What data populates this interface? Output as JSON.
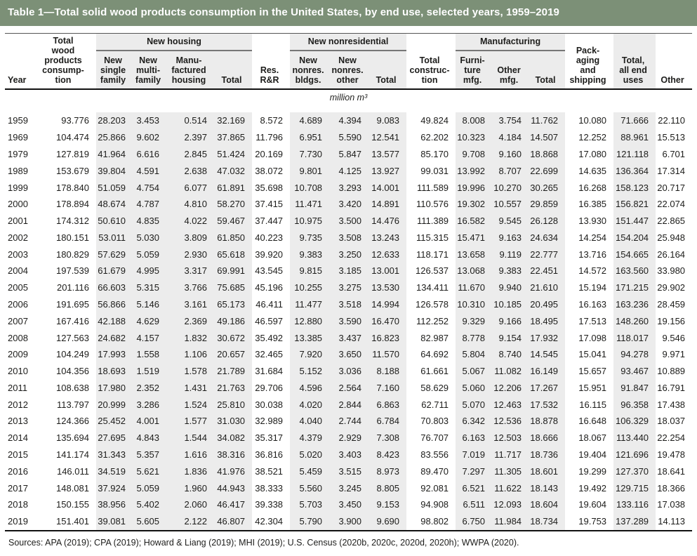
{
  "title": "Table 1—Total solid wood products consumption in the United States, by end use, selected years, 1959–2019",
  "colors": {
    "title_bar_green": "#7c9077",
    "column_shade_gray": "#ececec",
    "text": "#1d1d1b"
  },
  "table": {
    "unit": "million m³",
    "header": {
      "year": "Year",
      "total_wood": "Total\nwood\nproducts\nconsump-\ntion",
      "group_new_housing": "New housing",
      "group_new_nonresidential": "New nonresidential",
      "group_manufacturing": "Manufacturing",
      "new_single": "New\nsingle\nfamily",
      "new_multi": "New\nmulti-\nfamily",
      "manu_housing": "Manu-\nfactured\nhousing",
      "housing_total": "Total",
      "res_rr": "Res.\nR&R",
      "nonres_bldgs": "New\nnonres.\nbldgs.",
      "nonres_other": "New\nnonres.\nother",
      "nonres_total": "Total",
      "total_construction": "Total\nconstruc-\ntion",
      "furniture_mfg": "Furni-\nture\nmfg.",
      "other_mfg": "Other\nmfg.",
      "mfg_total": "Total",
      "packaging": "Pack-\naging\nand\nshipping",
      "total_all_end": "Total,\nall end\nuses",
      "other": "Other"
    },
    "columns": [
      "year",
      "total_wood_products_consumption",
      "new_single_family",
      "new_multi_family",
      "manufactured_housing",
      "new_housing_total",
      "res_rr",
      "new_nonres_bldgs",
      "new_nonres_other",
      "new_nonres_total",
      "total_construction",
      "furniture_mfg",
      "other_mfg",
      "manufacturing_total",
      "packaging_and_shipping",
      "total_all_end_uses",
      "other"
    ],
    "shaded_column_indexes": [
      2,
      3,
      4,
      5,
      7,
      8,
      9,
      11,
      12,
      13,
      15
    ],
    "rows": [
      [
        "1959",
        "93.776",
        "28.203",
        "3.453",
        "0.514",
        "32.169",
        "8.572",
        "4.689",
        "4.394",
        "9.083",
        "49.824",
        "8.008",
        "3.754",
        "11.762",
        "10.080",
        "71.666",
        "22.110"
      ],
      [
        "1969",
        "104.474",
        "25.866",
        "9.602",
        "2.397",
        "37.865",
        "11.796",
        "6.951",
        "5.590",
        "12.541",
        "62.202",
        "10.323",
        "4.184",
        "14.507",
        "12.252",
        "88.961",
        "15.513"
      ],
      [
        "1979",
        "127.819",
        "41.964",
        "6.616",
        "2.845",
        "51.424",
        "20.169",
        "7.730",
        "5.847",
        "13.577",
        "85.170",
        "9.708",
        "9.160",
        "18.868",
        "17.080",
        "121.118",
        "6.701"
      ],
      [
        "1989",
        "153.679",
        "39.804",
        "4.591",
        "2.638",
        "47.032",
        "38.072",
        "9.801",
        "4.125",
        "13.927",
        "99.031",
        "13.992",
        "8.707",
        "22.699",
        "14.635",
        "136.364",
        "17.314"
      ],
      [
        "1999",
        "178.840",
        "51.059",
        "4.754",
        "6.077",
        "61.891",
        "35.698",
        "10.708",
        "3.293",
        "14.001",
        "111.589",
        "19.996",
        "10.270",
        "30.265",
        "16.268",
        "158.123",
        "20.717"
      ],
      [
        "2000",
        "178.894",
        "48.674",
        "4.787",
        "4.810",
        "58.270",
        "37.415",
        "11.471",
        "3.420",
        "14.891",
        "110.576",
        "19.302",
        "10.557",
        "29.859",
        "16.385",
        "156.821",
        "22.074"
      ],
      [
        "2001",
        "174.312",
        "50.610",
        "4.835",
        "4.022",
        "59.467",
        "37.447",
        "10.975",
        "3.500",
        "14.476",
        "111.389",
        "16.582",
        "9.545",
        "26.128",
        "13.930",
        "151.447",
        "22.865"
      ],
      [
        "2002",
        "180.151",
        "53.011",
        "5.030",
        "3.809",
        "61.850",
        "40.223",
        "9.735",
        "3.508",
        "13.243",
        "115.315",
        "15.471",
        "9.163",
        "24.634",
        "14.254",
        "154.204",
        "25.948"
      ],
      [
        "2003",
        "180.829",
        "57.629",
        "5.059",
        "2.930",
        "65.618",
        "39.920",
        "9.383",
        "3.250",
        "12.633",
        "118.171",
        "13.658",
        "9.119",
        "22.777",
        "13.716",
        "154.665",
        "26.164"
      ],
      [
        "2004",
        "197.539",
        "61.679",
        "4.995",
        "3.317",
        "69.991",
        "43.545",
        "9.815",
        "3.185",
        "13.001",
        "126.537",
        "13.068",
        "9.383",
        "22.451",
        "14.572",
        "163.560",
        "33.980"
      ],
      [
        "2005",
        "201.116",
        "66.603",
        "5.315",
        "3.766",
        "75.685",
        "45.196",
        "10.255",
        "3.275",
        "13.530",
        "134.411",
        "11.670",
        "9.940",
        "21.610",
        "15.194",
        "171.215",
        "29.902"
      ],
      [
        "2006",
        "191.695",
        "56.866",
        "5.146",
        "3.161",
        "65.173",
        "46.411",
        "11.477",
        "3.518",
        "14.994",
        "126.578",
        "10.310",
        "10.185",
        "20.495",
        "16.163",
        "163.236",
        "28.459"
      ],
      [
        "2007",
        "167.416",
        "42.188",
        "4.629",
        "2.369",
        "49.186",
        "46.597",
        "12.880",
        "3.590",
        "16.470",
        "112.252",
        "9.329",
        "9.166",
        "18.495",
        "17.513",
        "148.260",
        "19.156"
      ],
      [
        "2008",
        "127.563",
        "24.682",
        "4.157",
        "1.832",
        "30.672",
        "35.492",
        "13.385",
        "3.437",
        "16.823",
        "82.987",
        "8.778",
        "9.154",
        "17.932",
        "17.098",
        "118.017",
        "9.546"
      ],
      [
        "2009",
        "104.249",
        "17.993",
        "1.558",
        "1.106",
        "20.657",
        "32.465",
        "7.920",
        "3.650",
        "11.570",
        "64.692",
        "5.804",
        "8.740",
        "14.545",
        "15.041",
        "94.278",
        "9.971"
      ],
      [
        "2010",
        "104.356",
        "18.693",
        "1.519",
        "1.578",
        "21.789",
        "31.684",
        "5.152",
        "3.036",
        "8.188",
        "61.661",
        "5.067",
        "11.082",
        "16.149",
        "15.657",
        "93.467",
        "10.889"
      ],
      [
        "2011",
        "108.638",
        "17.980",
        "2.352",
        "1.431",
        "21.763",
        "29.706",
        "4.596",
        "2.564",
        "7.160",
        "58.629",
        "5.060",
        "12.206",
        "17.267",
        "15.951",
        "91.847",
        "16.791"
      ],
      [
        "2012",
        "113.797",
        "20.999",
        "3.286",
        "1.524",
        "25.810",
        "30.038",
        "4.020",
        "2.844",
        "6.863",
        "62.711",
        "5.070",
        "12.463",
        "17.532",
        "16.115",
        "96.358",
        "17.438"
      ],
      [
        "2013",
        "124.366",
        "25.452",
        "4.001",
        "1.577",
        "31.030",
        "32.989",
        "4.040",
        "2.744",
        "6.784",
        "70.803",
        "6.342",
        "12.536",
        "18.878",
        "16.648",
        "106.329",
        "18.037"
      ],
      [
        "2014",
        "135.694",
        "27.695",
        "4.843",
        "1.544",
        "34.082",
        "35.317",
        "4.379",
        "2.929",
        "7.308",
        "76.707",
        "6.163",
        "12.503",
        "18.666",
        "18.067",
        "113.440",
        "22.254"
      ],
      [
        "2015",
        "141.174",
        "31.343",
        "5.357",
        "1.616",
        "38.316",
        "36.816",
        "5.020",
        "3.403",
        "8.423",
        "83.556",
        "7.019",
        "11.717",
        "18.736",
        "19.404",
        "121.696",
        "19.478"
      ],
      [
        "2016",
        "146.011",
        "34.519",
        "5.621",
        "1.836",
        "41.976",
        "38.521",
        "5.459",
        "3.515",
        "8.973",
        "89.470",
        "7.297",
        "11.305",
        "18.601",
        "19.299",
        "127.370",
        "18.641"
      ],
      [
        "2017",
        "148.081",
        "37.924",
        "5.059",
        "1.960",
        "44.943",
        "38.333",
        "5.560",
        "3.245",
        "8.805",
        "92.081",
        "6.521",
        "11.622",
        "18.143",
        "19.492",
        "129.715",
        "18.366"
      ],
      [
        "2018",
        "150.155",
        "38.956",
        "5.402",
        "2.060",
        "46.417",
        "39.338",
        "5.703",
        "3.450",
        "9.153",
        "94.908",
        "6.511",
        "12.093",
        "18.604",
        "19.604",
        "133.116",
        "17.038"
      ],
      [
        "2019",
        "151.401",
        "39.081",
        "5.605",
        "2.122",
        "46.807",
        "42.304",
        "5.790",
        "3.900",
        "9.690",
        "98.802",
        "6.750",
        "11.984",
        "18.734",
        "19.753",
        "137.289",
        "14.113"
      ]
    ]
  },
  "sources": "Sources: APA (2019); CPA (2019); Howard & Liang (2019); MHI (2019); U.S. Census (2020b, 2020c, 2020d, 2020h); WWPA (2020)."
}
